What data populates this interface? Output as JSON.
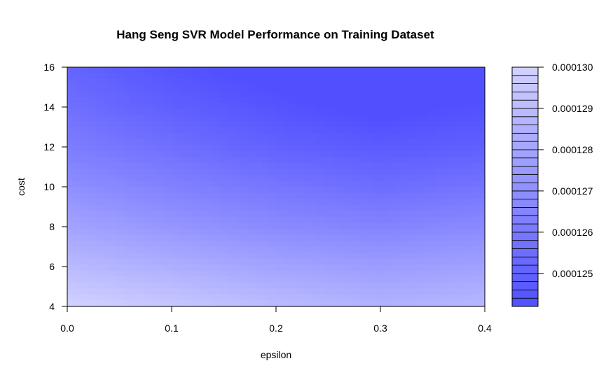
{
  "chart_data": {
    "type": "heatmap",
    "title": "Hang Seng SVR Model Performance on Training Dataset",
    "xlabel": "epsilon",
    "ylabel": "cost",
    "x": [
      0.0,
      0.1,
      0.2,
      0.3,
      0.4
    ],
    "y": [
      4,
      6,
      8,
      10,
      12,
      14,
      16
    ],
    "xlim": [
      0.0,
      0.4
    ],
    "ylim": [
      4,
      16
    ],
    "x_ticks": [
      "0.0",
      "0.1",
      "0.2",
      "0.3",
      "0.4"
    ],
    "y_ticks": [
      "4",
      "6",
      "8",
      "10",
      "12",
      "14",
      "16"
    ],
    "z": [
      [
        0.00013,
        0.0001295,
        0.000129,
        0.0001286,
        0.0001288
      ],
      [
        0.0001289,
        0.0001284,
        0.0001279,
        0.0001276,
        0.0001278
      ],
      [
        0.0001279,
        0.0001273,
        0.0001268,
        0.0001265,
        0.0001268
      ],
      [
        0.000127,
        0.0001264,
        0.0001259,
        0.0001255,
        0.0001258
      ],
      [
        0.0001262,
        0.0001256,
        0.000125,
        0.0001247,
        0.0001249
      ],
      [
        0.0001256,
        0.0001249,
        0.0001244,
        0.000124,
        0.0001243
      ],
      [
        0.0001251,
        0.0001244,
        0.0001239,
        0.0001235,
        0.0001238
      ]
    ],
    "zlim": [
      0.0001242,
      0.00013
    ],
    "color_low": "#5050ff",
    "color_high": "#d2d2ff",
    "legend": {
      "position": "right",
      "levels": 29,
      "tick_values": [
        0.000125,
        0.000126,
        0.000127,
        0.000128,
        0.000129,
        0.00013
      ],
      "tick_labels": [
        "0.000125",
        "0.000126",
        "0.000127",
        "0.000128",
        "0.000129",
        "0.000130"
      ]
    }
  }
}
